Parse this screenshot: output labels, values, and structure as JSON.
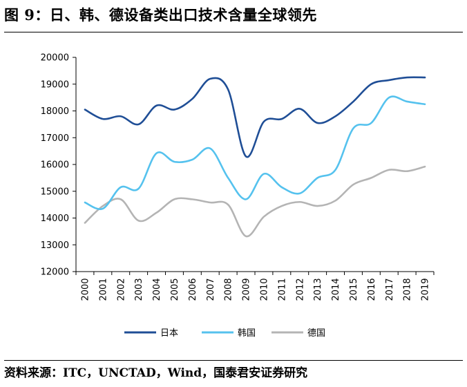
{
  "title": "图 9：日、韩、德设备类出口技术含量全球领先",
  "source": "资料来源：ITC，UNCTAD，Wind，国泰君安证券研究",
  "chart_data": {
    "type": "line",
    "title": "",
    "xlabel": "",
    "ylabel": "",
    "ylim": [
      12000,
      20000
    ],
    "yticks": [
      12000,
      13000,
      14000,
      15000,
      16000,
      17000,
      18000,
      19000,
      20000
    ],
    "x": [
      "2000",
      "2001",
      "2002",
      "2003",
      "2004",
      "2005",
      "2006",
      "2007",
      "2008",
      "2009",
      "2010",
      "2011",
      "2012",
      "2013",
      "2014",
      "2015",
      "2016",
      "2017",
      "2018",
      "2019"
    ],
    "grid": false,
    "legend_position": "bottom",
    "series": [
      {
        "name": "日本",
        "color": "#1f4e96",
        "values": [
          18050,
          17700,
          17800,
          17500,
          18200,
          18050,
          18450,
          19200,
          18800,
          16300,
          17600,
          17700,
          18080,
          17550,
          17800,
          18350,
          19000,
          19150,
          19250,
          19250
        ]
      },
      {
        "name": "韩国",
        "color": "#55c2ee",
        "values": [
          14580,
          14350,
          15150,
          15100,
          16420,
          16100,
          16180,
          16600,
          15500,
          14700,
          15650,
          15150,
          14920,
          15500,
          15800,
          17350,
          17550,
          18500,
          18350,
          18250
        ]
      },
      {
        "name": "德国",
        "color": "#b4b4b4",
        "values": [
          13820,
          14450,
          14700,
          13900,
          14200,
          14700,
          14700,
          14580,
          14500,
          13320,
          14050,
          14450,
          14600,
          14450,
          14650,
          15250,
          15500,
          15800,
          15750,
          15920
        ]
      }
    ]
  }
}
